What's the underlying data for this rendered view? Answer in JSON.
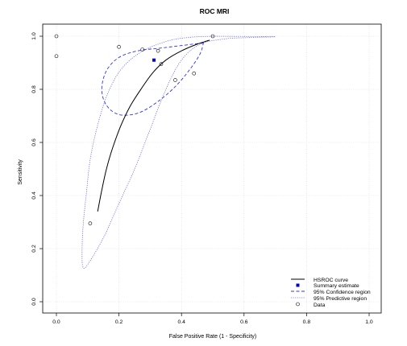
{
  "chart_data": {
    "type": "scatter",
    "title": "ROC MRI",
    "xlabel": "False Positive Rate (1 - Specificity)",
    "ylabel": "Sensitivity",
    "xlim": [
      0,
      1
    ],
    "ylim": [
      0,
      1
    ],
    "xticks": [
      "0.0",
      "0.2",
      "0.4",
      "0.6",
      "0.8",
      "1.0"
    ],
    "yticks": [
      "0.0",
      "0.2",
      "0.4",
      "0.6",
      "0.8",
      "1.0"
    ],
    "grid": true,
    "legend_position": "bottom-right",
    "legend": [
      "HSROC curve",
      "Summary estimate",
      "95% Confidence region",
      "95% Predictive region",
      "Data"
    ],
    "colors": {
      "curve": "#000000",
      "summary": "#0000cd",
      "confidence": "#3333ee",
      "predictive": "#6666ff",
      "grid": "#d9d9d9"
    },
    "data_points": [
      {
        "x": 0.0,
        "y": 1.0
      },
      {
        "x": 0.0,
        "y": 0.925
      },
      {
        "x": 0.2,
        "y": 0.96
      },
      {
        "x": 0.275,
        "y": 0.95
      },
      {
        "x": 0.325,
        "y": 0.945
      },
      {
        "x": 0.335,
        "y": 0.895
      },
      {
        "x": 0.38,
        "y": 0.835
      },
      {
        "x": 0.44,
        "y": 0.86
      },
      {
        "x": 0.5,
        "y": 1.0
      },
      {
        "x": 0.108,
        "y": 0.295
      }
    ],
    "summary_estimate": {
      "x": 0.312,
      "y": 0.91
    },
    "hsroc_curve": [
      [
        0.132,
        0.34
      ],
      [
        0.145,
        0.42
      ],
      [
        0.16,
        0.5
      ],
      [
        0.18,
        0.58
      ],
      [
        0.205,
        0.66
      ],
      [
        0.235,
        0.735
      ],
      [
        0.27,
        0.8
      ],
      [
        0.31,
        0.865
      ],
      [
        0.35,
        0.91
      ],
      [
        0.4,
        0.945
      ],
      [
        0.45,
        0.97
      ],
      [
        0.49,
        0.985
      ]
    ],
    "confidence_region": [
      [
        0.47,
        0.975
      ],
      [
        0.4,
        0.965
      ],
      [
        0.33,
        0.955
      ],
      [
        0.26,
        0.945
      ],
      [
        0.2,
        0.92
      ],
      [
        0.16,
        0.87
      ],
      [
        0.145,
        0.8
      ],
      [
        0.16,
        0.74
      ],
      [
        0.2,
        0.705
      ],
      [
        0.26,
        0.71
      ],
      [
        0.32,
        0.75
      ],
      [
        0.38,
        0.81
      ],
      [
        0.43,
        0.88
      ],
      [
        0.46,
        0.935
      ],
      [
        0.47,
        0.975
      ]
    ],
    "predictive_region": [
      [
        0.5,
        1.0
      ],
      [
        0.6,
        0.999
      ],
      [
        0.7,
        0.998
      ],
      [
        0.62,
        0.995
      ],
      [
        0.54,
        0.99
      ],
      [
        0.46,
        0.97
      ],
      [
        0.4,
        0.91
      ],
      [
        0.35,
        0.8
      ],
      [
        0.3,
        0.65
      ],
      [
        0.25,
        0.5
      ],
      [
        0.2,
        0.37
      ],
      [
        0.15,
        0.24
      ],
      [
        0.1,
        0.14
      ],
      [
        0.085,
        0.13
      ],
      [
        0.082,
        0.18
      ],
      [
        0.085,
        0.28
      ],
      [
        0.095,
        0.4
      ],
      [
        0.11,
        0.55
      ],
      [
        0.14,
        0.7
      ],
      [
        0.17,
        0.8
      ],
      [
        0.21,
        0.88
      ],
      [
        0.27,
        0.94
      ],
      [
        0.35,
        0.98
      ],
      [
        0.42,
        0.995
      ],
      [
        0.5,
        1.0
      ]
    ]
  }
}
